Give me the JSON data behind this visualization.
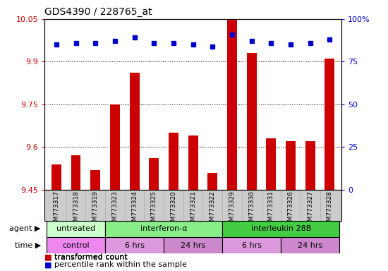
{
  "title": "GDS4390 / 228765_at",
  "samples": [
    "GSM773317",
    "GSM773318",
    "GSM773319",
    "GSM773323",
    "GSM773324",
    "GSM773325",
    "GSM773320",
    "GSM773321",
    "GSM773322",
    "GSM773329",
    "GSM773330",
    "GSM773331",
    "GSM773326",
    "GSM773327",
    "GSM773328"
  ],
  "transformed_count": [
    9.54,
    9.57,
    9.52,
    9.75,
    9.86,
    9.56,
    9.65,
    9.64,
    9.51,
    10.05,
    9.93,
    9.63,
    9.62,
    9.62,
    9.91
  ],
  "percentile_rank": [
    85,
    86,
    86,
    87,
    89,
    86,
    86,
    85,
    84,
    91,
    87,
    86,
    85,
    86,
    88
  ],
  "ymin": 9.45,
  "ymax": 10.05,
  "yticks": [
    9.45,
    9.6,
    9.75,
    9.9,
    10.05
  ],
  "ytick_labels": [
    "9.45",
    "9.6",
    "9.75",
    "9.9",
    "10.05"
  ],
  "y2min": 0,
  "y2max": 100,
  "y2ticks": [
    0,
    25,
    50,
    75,
    100
  ],
  "y2tick_labels": [
    "0",
    "25",
    "50",
    "75",
    "100%"
  ],
  "agent_groups": [
    {
      "label": "untreated",
      "start": 0,
      "end": 3,
      "color": "#ccffcc"
    },
    {
      "label": "interferon-α",
      "start": 3,
      "end": 9,
      "color": "#88ee88"
    },
    {
      "label": "interleukin 28B",
      "start": 9,
      "end": 15,
      "color": "#44cc44"
    }
  ],
  "time_groups": [
    {
      "label": "control",
      "start": 0,
      "end": 3,
      "color": "#ee88ee"
    },
    {
      "label": "6 hrs",
      "start": 3,
      "end": 6,
      "color": "#dd99dd"
    },
    {
      "label": "24 hrs",
      "start": 6,
      "end": 9,
      "color": "#cc88cc"
    },
    {
      "label": "6 hrs",
      "start": 9,
      "end": 12,
      "color": "#dd99dd"
    },
    {
      "label": "24 hrs",
      "start": 12,
      "end": 15,
      "color": "#cc88cc"
    }
  ],
  "bar_color": "#cc0000",
  "dot_color": "#0000cc",
  "grid_color": "#000000",
  "label_color_left": "#cc0000",
  "label_color_right": "#0000cc",
  "bg_color": "#ffffff",
  "tick_area_color": "#cccccc"
}
